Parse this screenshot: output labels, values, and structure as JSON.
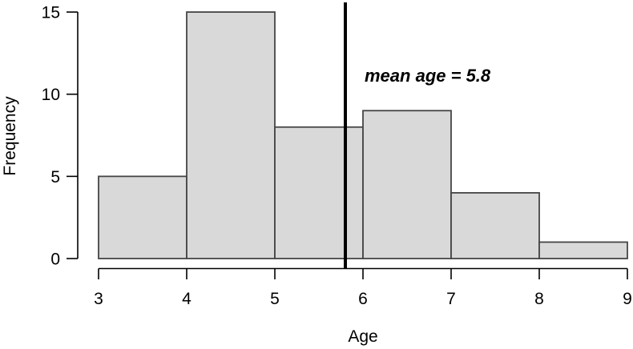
{
  "chart_data": {
    "type": "bar",
    "variant": "histogram",
    "xlabel": "Age",
    "ylabel": "Frequency",
    "bin_edges": [
      3,
      4,
      5,
      6,
      7,
      8,
      9
    ],
    "categories": [
      "3-4",
      "4-5",
      "5-6",
      "6-7",
      "7-8",
      "8-9"
    ],
    "values": [
      5,
      15,
      8,
      9,
      4,
      1
    ],
    "x_ticks": [
      "3",
      "4",
      "5",
      "6",
      "7",
      "8",
      "9"
    ],
    "y_ticks": [
      "0",
      "5",
      "10",
      "15"
    ],
    "xlim": [
      3,
      9
    ],
    "ylim": [
      0,
      15
    ],
    "grid": false,
    "legend": null,
    "mean_line": {
      "x": 5.8,
      "label": "mean age = 5.8"
    },
    "colors": {
      "bar_fill": "#d9d9d9",
      "bar_border": "#454545",
      "axis": "#000000",
      "mean_line": "#000000",
      "text": "#000000"
    }
  }
}
